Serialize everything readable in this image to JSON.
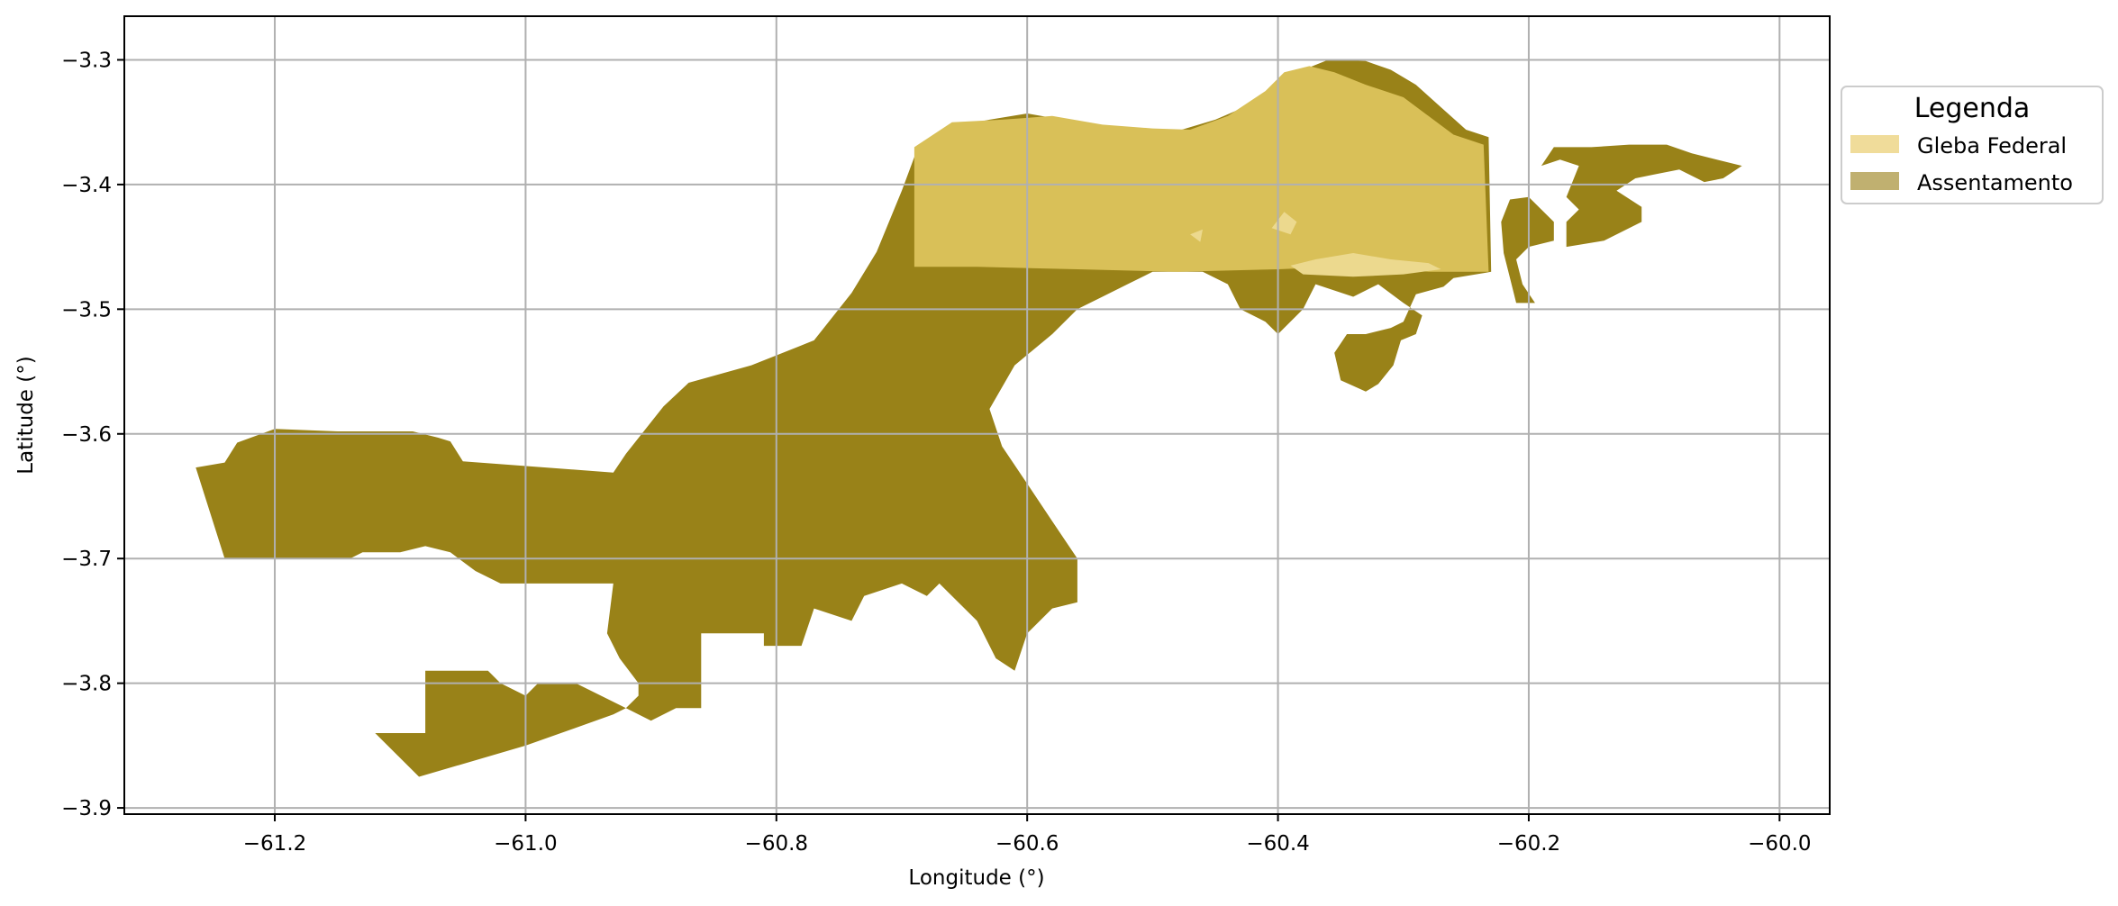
{
  "chart_data": {
    "type": "map",
    "xlabel": "Longitude (°)",
    "ylabel": "Latitude (°)",
    "xlim": [
      -61.32,
      -59.96
    ],
    "ylim": [
      -3.905,
      -3.265
    ],
    "xticks": [
      -61.2,
      -61.0,
      -60.8,
      -60.6,
      -60.4,
      -60.2,
      -60.0
    ],
    "xtick_labels": [
      "−61.2",
      "−61.0",
      "−60.8",
      "−60.6",
      "−60.4",
      "−60.2",
      "−60.0"
    ],
    "yticks": [
      -3.3,
      -3.4,
      -3.5,
      -3.6,
      -3.7,
      -3.8,
      -3.9
    ],
    "ytick_labels": [
      "−3.3",
      "−3.4",
      "−3.5",
      "−3.6",
      "−3.7",
      "−3.8",
      "−3.9"
    ],
    "grid": true,
    "legend": {
      "title": "Legenda",
      "placement": "outside-upper-right",
      "entries": [
        {
          "label": "Gleba Federal",
          "color": "#f0dc9a"
        },
        {
          "label": "Assentamento",
          "color": "#c0b070"
        }
      ]
    },
    "colors": {
      "assentamento_fill": "#998218",
      "gleba_fill": "#d9c058",
      "gleba_light": "#ecd98e",
      "grid": "#b0b0b0"
    },
    "layers": [
      {
        "name": "Assentamento",
        "polygons": [
          [
            [
              -61.263,
              -3.627
            ],
            [
              -61.24,
              -3.623
            ],
            [
              -61.23,
              -3.607
            ],
            [
              -61.2,
              -3.596
            ],
            [
              -61.15,
              -3.598
            ],
            [
              -61.09,
              -3.598
            ],
            [
              -61.07,
              -3.603
            ],
            [
              -61.06,
              -3.606
            ],
            [
              -61.05,
              -3.622
            ],
            [
              -60.93,
              -3.631
            ],
            [
              -60.92,
              -3.616
            ],
            [
              -60.89,
              -3.578
            ],
            [
              -60.87,
              -3.559
            ],
            [
              -60.82,
              -3.545
            ],
            [
              -60.77,
              -3.525
            ],
            [
              -60.74,
              -3.487
            ],
            [
              -60.72,
              -3.454
            ],
            [
              -60.7,
              -3.405
            ],
            [
              -60.69,
              -3.378
            ],
            [
              -60.66,
              -3.354
            ],
            [
              -60.63,
              -3.348
            ],
            [
              -60.6,
              -3.343
            ],
            [
              -60.56,
              -3.35
            ],
            [
              -60.52,
              -3.355
            ],
            [
              -60.48,
              -3.357
            ],
            [
              -60.45,
              -3.348
            ],
            [
              -60.42,
              -3.335
            ],
            [
              -60.39,
              -3.312
            ],
            [
              -60.36,
              -3.3
            ],
            [
              -60.33,
              -3.301
            ],
            [
              -60.31,
              -3.308
            ],
            [
              -60.29,
              -3.32
            ],
            [
              -60.27,
              -3.338
            ],
            [
              -60.25,
              -3.356
            ],
            [
              -60.232,
              -3.362
            ],
            [
              -60.23,
              -3.47
            ],
            [
              -60.26,
              -3.475
            ],
            [
              -60.268,
              -3.482
            ],
            [
              -60.29,
              -3.488
            ],
            [
              -60.3,
              -3.51
            ],
            [
              -60.31,
              -3.515
            ],
            [
              -60.33,
              -3.52
            ],
            [
              -60.345,
              -3.52
            ],
            [
              -60.355,
              -3.535
            ],
            [
              -60.35,
              -3.557
            ],
            [
              -60.33,
              -3.566
            ],
            [
              -60.32,
              -3.56
            ],
            [
              -60.308,
              -3.545
            ],
            [
              -60.302,
              -3.525
            ],
            [
              -60.29,
              -3.52
            ],
            [
              -60.285,
              -3.505
            ],
            [
              -60.3,
              -3.495
            ],
            [
              -60.32,
              -3.48
            ],
            [
              -60.34,
              -3.49
            ],
            [
              -60.37,
              -3.48
            ],
            [
              -60.38,
              -3.5
            ],
            [
              -60.4,
              -3.52
            ],
            [
              -60.41,
              -3.51
            ],
            [
              -60.43,
              -3.5
            ],
            [
              -60.44,
              -3.48
            ],
            [
              -60.46,
              -3.47
            ],
            [
              -60.5,
              -3.47
            ],
            [
              -60.52,
              -3.48
            ],
            [
              -60.54,
              -3.49
            ],
            [
              -60.56,
              -3.5
            ],
            [
              -60.58,
              -3.52
            ],
            [
              -60.61,
              -3.545
            ],
            [
              -60.63,
              -3.58
            ],
            [
              -60.62,
              -3.61
            ],
            [
              -60.6,
              -3.64
            ],
            [
              -60.58,
              -3.67
            ],
            [
              -60.56,
              -3.7
            ],
            [
              -60.56,
              -3.735
            ],
            [
              -60.58,
              -3.74
            ],
            [
              -60.6,
              -3.76
            ],
            [
              -60.61,
              -3.79
            ],
            [
              -60.625,
              -3.78
            ],
            [
              -60.64,
              -3.75
            ],
            [
              -60.67,
              -3.72
            ],
            [
              -60.68,
              -3.73
            ],
            [
              -60.7,
              -3.72
            ],
            [
              -60.73,
              -3.73
            ],
            [
              -60.74,
              -3.75
            ],
            [
              -60.77,
              -3.74
            ],
            [
              -60.78,
              -3.77
            ],
            [
              -60.81,
              -3.77
            ],
            [
              -60.81,
              -3.76
            ],
            [
              -60.86,
              -3.76
            ],
            [
              -60.86,
              -3.82
            ],
            [
              -60.88,
              -3.82
            ],
            [
              -60.9,
              -3.83
            ],
            [
              -60.92,
              -3.82
            ],
            [
              -60.96,
              -3.8
            ],
            [
              -60.99,
              -3.8
            ],
            [
              -61.0,
              -3.81
            ],
            [
              -61.02,
              -3.8
            ],
            [
              -61.03,
              -3.79
            ],
            [
              -61.06,
              -3.79
            ],
            [
              -61.08,
              -3.79
            ],
            [
              -61.08,
              -3.84
            ],
            [
              -61.12,
              -3.84
            ],
            [
              -61.085,
              -3.875
            ],
            [
              -61.0,
              -3.85
            ],
            [
              -60.93,
              -3.825
            ],
            [
              -60.92,
              -3.82
            ],
            [
              -60.91,
              -3.81
            ],
            [
              -60.91,
              -3.8
            ],
            [
              -60.925,
              -3.78
            ],
            [
              -60.935,
              -3.76
            ],
            [
              -60.93,
              -3.72
            ],
            [
              -60.96,
              -3.72
            ],
            [
              -61.0,
              -3.72
            ],
            [
              -61.02,
              -3.72
            ],
            [
              -61.04,
              -3.71
            ],
            [
              -61.06,
              -3.695
            ],
            [
              -61.08,
              -3.69
            ],
            [
              -61.1,
              -3.695
            ],
            [
              -61.13,
              -3.695
            ],
            [
              -61.14,
              -3.7
            ],
            [
              -61.15,
              -3.7
            ],
            [
              -61.24,
              -3.7
            ]
          ],
          [
            [
              -60.215,
              -3.412
            ],
            [
              -60.2,
              -3.41
            ],
            [
              -60.19,
              -3.42
            ],
            [
              -60.18,
              -3.43
            ],
            [
              -60.18,
              -3.445
            ],
            [
              -60.2,
              -3.45
            ],
            [
              -60.21,
              -3.46
            ],
            [
              -60.205,
              -3.48
            ],
            [
              -60.195,
              -3.495
            ],
            [
              -60.21,
              -3.495
            ],
            [
              -60.215,
              -3.475
            ],
            [
              -60.22,
              -3.455
            ],
            [
              -60.222,
              -3.43
            ]
          ],
          [
            [
              -60.17,
              -3.45
            ],
            [
              -60.17,
              -3.43
            ],
            [
              -60.16,
              -3.42
            ],
            [
              -60.17,
              -3.41
            ],
            [
              -60.16,
              -3.385
            ],
            [
              -60.175,
              -3.38
            ],
            [
              -60.19,
              -3.385
            ],
            [
              -60.18,
              -3.37
            ],
            [
              -60.15,
              -3.37
            ],
            [
              -60.12,
              -3.368
            ],
            [
              -60.09,
              -3.368
            ],
            [
              -60.07,
              -3.375
            ],
            [
              -60.05,
              -3.38
            ],
            [
              -60.03,
              -3.385
            ],
            [
              -60.045,
              -3.395
            ],
            [
              -60.06,
              -3.398
            ],
            [
              -60.08,
              -3.388
            ],
            [
              -60.1,
              -3.392
            ],
            [
              -60.115,
              -3.395
            ],
            [
              -60.13,
              -3.405
            ],
            [
              -60.11,
              -3.418
            ],
            [
              -60.11,
              -3.43
            ],
            [
              -60.14,
              -3.445
            ]
          ]
        ]
      },
      {
        "name": "Gleba Federal",
        "polygons": [
          [
            [
              -60.69,
              -3.37
            ],
            [
              -60.66,
              -3.35
            ],
            [
              -60.62,
              -3.348
            ],
            [
              -60.58,
              -3.345
            ],
            [
              -60.54,
              -3.352
            ],
            [
              -60.5,
              -3.355
            ],
            [
              -60.47,
              -3.356
            ],
            [
              -60.44,
              -3.345
            ],
            [
              -60.41,
              -3.325
            ],
            [
              -60.395,
              -3.31
            ],
            [
              -60.375,
              -3.305
            ],
            [
              -60.355,
              -3.31
            ],
            [
              -60.33,
              -3.32
            ],
            [
              -60.3,
              -3.33
            ],
            [
              -60.28,
              -3.345
            ],
            [
              -60.26,
              -3.36
            ],
            [
              -60.236,
              -3.368
            ],
            [
              -60.232,
              -3.47
            ],
            [
              -60.28,
              -3.47
            ],
            [
              -60.33,
              -3.465
            ],
            [
              -60.4,
              -3.468
            ],
            [
              -60.48,
              -3.47
            ],
            [
              -60.56,
              -3.468
            ],
            [
              -60.64,
              -3.466
            ],
            [
              -60.69,
              -3.466
            ]
          ]
        ]
      },
      {
        "name": "Gleba Federal",
        "polygons": [
          [
            [
              -60.39,
              -3.465
            ],
            [
              -60.37,
              -3.46
            ],
            [
              -60.34,
              -3.455
            ],
            [
              -60.31,
              -3.46
            ],
            [
              -60.28,
              -3.463
            ],
            [
              -60.27,
              -3.468
            ],
            [
              -60.3,
              -3.472
            ],
            [
              -60.34,
              -3.474
            ],
            [
              -60.38,
              -3.472
            ]
          ],
          [
            [
              -60.405,
              -3.435
            ],
            [
              -60.395,
              -3.422
            ],
            [
              -60.385,
              -3.43
            ],
            [
              -60.39,
              -3.44
            ]
          ],
          [
            [
              -60.47,
              -3.44
            ],
            [
              -60.46,
              -3.436
            ],
            [
              -60.462,
              -3.446
            ]
          ]
        ]
      }
    ]
  }
}
